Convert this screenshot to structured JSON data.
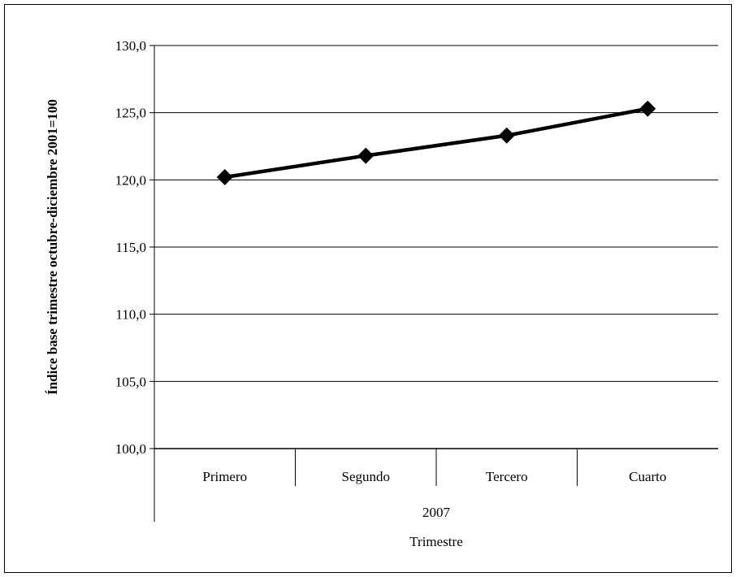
{
  "chart_data": {
    "type": "line",
    "title": "",
    "xlabel": "Trimestre",
    "ylabel": "Índice base trimestre octubre-diciembre 2001=100",
    "group_label": "2007",
    "categories": [
      "Primero",
      "Segundo",
      "Tercero",
      "Cuarto"
    ],
    "series": [
      {
        "values": [
          120.2,
          121.8,
          123.3,
          125.3
        ]
      }
    ],
    "ylim": [
      100,
      130
    ],
    "yticks": [
      100,
      105,
      110,
      115,
      120,
      125,
      130
    ],
    "ytick_labels": [
      "100,0",
      "105,0",
      "110,0",
      "115,0",
      "120,0",
      "125,0",
      "130,0"
    ],
    "grid": true,
    "legend": "none",
    "marker": "diamond",
    "line_color": "#000000"
  }
}
